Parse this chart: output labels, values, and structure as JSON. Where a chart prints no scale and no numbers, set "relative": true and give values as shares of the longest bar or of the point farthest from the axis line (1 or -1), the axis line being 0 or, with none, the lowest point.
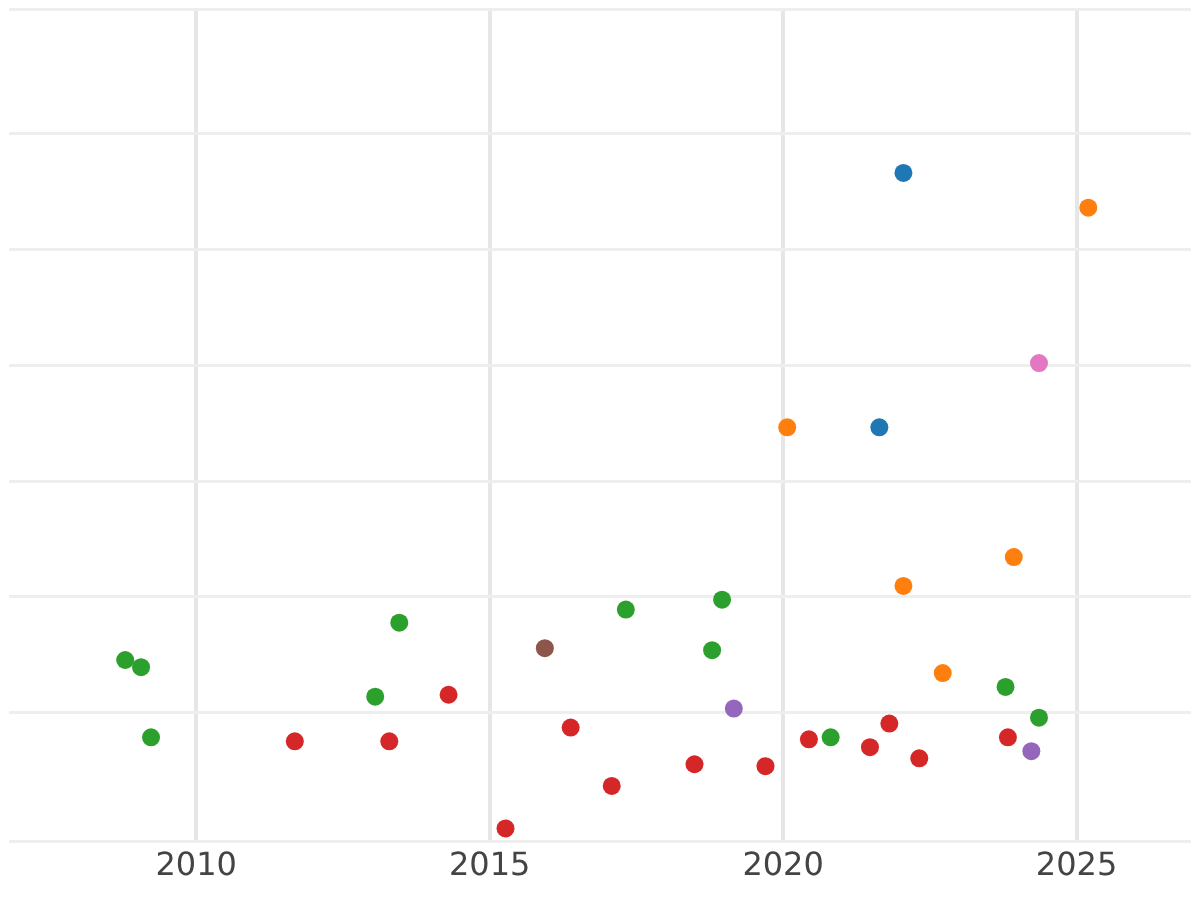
{
  "chart_data": {
    "type": "scatter",
    "relative": true,
    "grid": true,
    "marker": "circle",
    "xlim": [
      2006.81,
      2026.95
    ],
    "xticks": [
      2010,
      2015,
      2020,
      2025
    ],
    "series": [
      {
        "color": "#1f77b4",
        "x": [
          2022.05,
          2021.64
        ],
        "values": [
          1,
          0.612
        ]
      },
      {
        "color": "#ff7f0e",
        "x": [
          2025.2,
          2020.07,
          2022.05,
          2023.93,
          2022.72
        ],
        "values": [
          0.947,
          0.612,
          0.37,
          0.414,
          0.237
        ]
      },
      {
        "color": "#2ca02c",
        "x": [
          2008.79,
          2009.06,
          2009.23,
          2013.05,
          2013.46,
          2017.32,
          2018.96,
          2018.79,
          2020.81,
          2023.79,
          2024.36
        ],
        "values": [
          0.257,
          0.246,
          0.139,
          0.201,
          0.314,
          0.334,
          0.349,
          0.272,
          0.139,
          0.216,
          0.169
        ]
      },
      {
        "color": "#d62728",
        "x": [
          2011.68,
          2013.29,
          2014.3,
          2015.27,
          2016.38,
          2017.08,
          2018.49,
          2019.7,
          2020.44,
          2021.48,
          2021.81,
          2022.32,
          2023.83
        ],
        "values": [
          0.133,
          0.133,
          0.204,
          0,
          0.154,
          0.065,
          0.098,
          0.095,
          0.136,
          0.124,
          0.16,
          0.107,
          0.139
        ]
      },
      {
        "color": "#9467bd",
        "x": [
          2019.16,
          2024.23
        ],
        "values": [
          0.183,
          0.118
        ]
      },
      {
        "color": "#8c564b",
        "x": [
          2015.94
        ],
        "values": [
          0.275
        ]
      },
      {
        "color": "#e377c2",
        "x": [
          2024.36
        ],
        "values": [
          0.71
        ]
      }
    ]
  }
}
